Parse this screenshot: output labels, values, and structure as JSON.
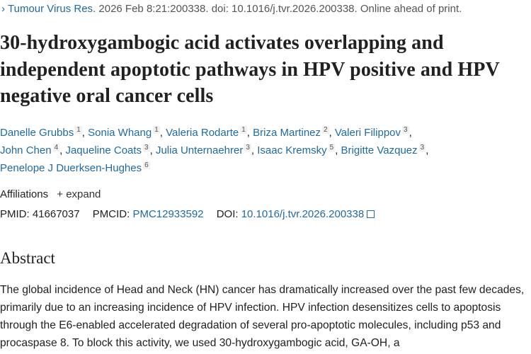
{
  "citation": {
    "journal": "Tumour Virus Res.",
    "details": "2026 Feb 8:21:200338. doi: 10.1016/j.tvr.2026.200338. Online ahead of print."
  },
  "title": "30-hydroxygambogic acid activates overlapping and independent apoptotic pathways in HPV positive and HPV negative oral cancer cells",
  "authors": [
    {
      "name": "Danelle Grubbs",
      "aff": "1"
    },
    {
      "name": "Sonia Whang",
      "aff": "1"
    },
    {
      "name": "Valeria Rodarte",
      "aff": "1"
    },
    {
      "name": "Briza Martinez",
      "aff": "2"
    },
    {
      "name": "Valeri Filippov",
      "aff": "3"
    },
    {
      "name": "John Chen",
      "aff": "4"
    },
    {
      "name": "Jaqueline Coats",
      "aff": "3"
    },
    {
      "name": "Julia Unternaehrer",
      "aff": "3"
    },
    {
      "name": "Isaac Kremsky",
      "aff": "5"
    },
    {
      "name": "Brigitte Vazquez",
      "aff": "3"
    },
    {
      "name": "Penelope J Duerksen-Hughes",
      "aff": "6"
    }
  ],
  "affiliations": {
    "label": "Affiliations",
    "expand": "+ expand"
  },
  "identifiers": {
    "pmid_label": "PMID:",
    "pmid": "41667037",
    "pmcid_label": "PMCID:",
    "pmcid": "PMC12933592",
    "doi_label": "DOI:",
    "doi": "10.1016/j.tvr.2026.200338"
  },
  "abstract": {
    "heading": "Abstract",
    "text": "The global incidence of Head and Neck (HN) cancer has dramatically increased over the past few decades, primarily due to an increasing incidence of HPV infection. HPV infection desensitizes cells to apoptosis through the E6-enabled accelerated degradation of several pro-apoptotic molecules, including p53 and procaspase 8. To block this activity, we used 30-hydroxygambogic acid, GA-OH, a"
  },
  "colors": {
    "link": "#1f6aa5",
    "text": "#212121"
  }
}
